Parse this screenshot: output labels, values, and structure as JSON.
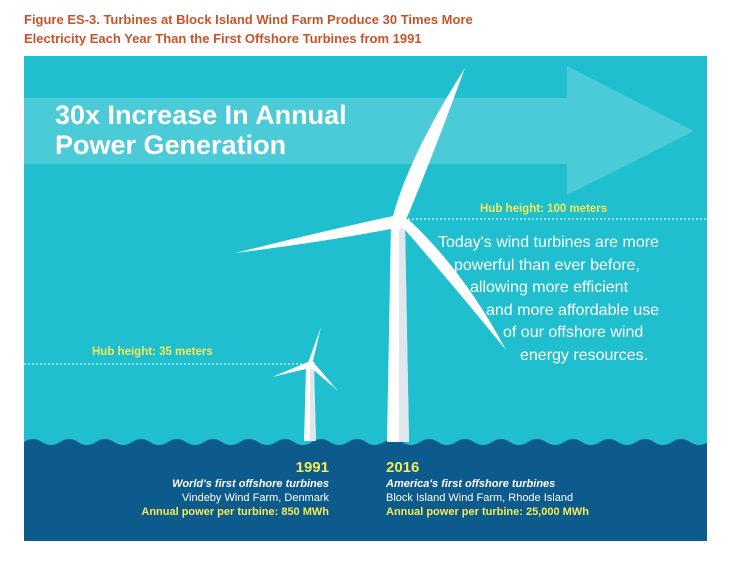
{
  "figure": {
    "caption_line1": "Figure ES-3. Turbines at Block Island Wind Farm Produce 30 Times More",
    "caption_line2": "Electricity Each Year Than the First Offshore Turbines from 1991"
  },
  "banner": {
    "headline_line1": "30x Increase In Annual",
    "headline_line2": "Power Generation"
  },
  "hub_heights": {
    "new": "Hub height: 100 meters",
    "old": "Hub height: 35 meters"
  },
  "description": [
    "Today's wind turbines are more",
    "powerful than ever before,",
    "allowing more efficient",
    "and more affordable use",
    "of our offshore wind",
    "energy resources."
  ],
  "turbines": [
    {
      "year": "1991",
      "subtitle": "World's first offshore turbines",
      "location": "Vindeby Wind Farm, Denmark",
      "power": "Annual power per turbine: 850 MWh"
    },
    {
      "year": "2016",
      "subtitle": "America's first offshore turbines",
      "location": "Block Island Wind Farm, Rhode Island",
      "power": "Annual power per turbine: 25,000 MWh"
    }
  ],
  "colors": {
    "caption": "#c8532a",
    "sky": "#1fbfcf",
    "sea": "#0d5a8c",
    "highlight": "#f4ea55",
    "turbine": "#ffffff"
  }
}
